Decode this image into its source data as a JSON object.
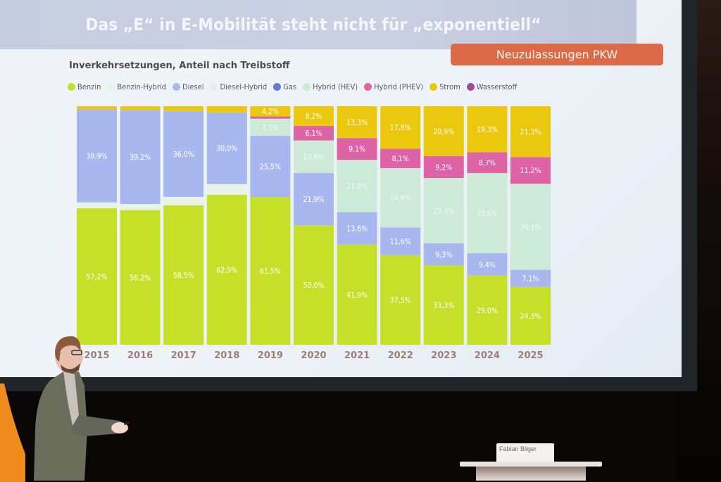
{
  "slide": {
    "title": "Das „E“ in E-Mobilität steht nicht für „exponentiell“",
    "badge": "Neuzulassungen PKW",
    "subtitle": "Inverkehrsetzungen, Anteil nach Treibstoff"
  },
  "legend": [
    {
      "label": "Benzin",
      "color": "#c6e02a"
    },
    {
      "label": "Benzin-Hybrid",
      "color": "#e8f4e8"
    },
    {
      "label": "Diesel",
      "color": "#a8b8ee"
    },
    {
      "label": "Diesel-Hybrid",
      "color": "#e4ecf6"
    },
    {
      "label": "Gas",
      "color": "#6878d8"
    },
    {
      "label": "Hybrid (HEV)",
      "color": "#cde9d8"
    },
    {
      "label": "Hybrid (PHEV)",
      "color": "#de62a6"
    },
    {
      "label": "Strom",
      "color": "#ebc70e"
    },
    {
      "label": "Wasserstoff",
      "color": "#a04a9c"
    }
  ],
  "presenter": {
    "name_card": "Fabian Bilger"
  },
  "chart_data": {
    "type": "bar",
    "stacked": true,
    "title": "Inverkehrsetzungen, Anteil nach Treibstoff",
    "xlabel": "",
    "ylabel": "",
    "ylim": [
      0,
      100
    ],
    "unit": "%",
    "categories": [
      "2015",
      "2016",
      "2017",
      "2018",
      "2019",
      "2020",
      "2021",
      "2022",
      "2023",
      "2024",
      "2025"
    ],
    "series": [
      {
        "name": "Benzin",
        "color": "#c6e02a",
        "values": [
          57.2,
          56.2,
          58.5,
          62.9,
          61.5,
          50.0,
          41.9,
          37.5,
          33.3,
          29.0,
          24.3
        ],
        "labeled": true
      },
      {
        "name": "Benzin-Hybrid",
        "color": "#e8f4e8",
        "values": [
          2.5,
          2.5,
          3.5,
          4.5,
          0,
          0,
          0,
          0,
          0,
          0,
          0
        ],
        "labeled": false
      },
      {
        "name": "Diesel",
        "color": "#a8b8ee",
        "values": [
          38.9,
          39.2,
          36.0,
          30.0,
          25.5,
          21.9,
          13.6,
          11.6,
          9.3,
          9.4,
          7.1
        ],
        "labeled": true
      },
      {
        "name": "Diesel-Hybrid",
        "color": "#e4ecf6",
        "values": [
          0,
          0,
          0,
          0,
          0,
          0,
          0,
          0,
          0,
          0,
          0
        ],
        "labeled": false
      },
      {
        "name": "Gas",
        "color": "#6878d8",
        "values": [
          0,
          0,
          0,
          0,
          0,
          0,
          0,
          0,
          0,
          0,
          0
        ],
        "labeled": false
      },
      {
        "name": "Hybrid (HEV)",
        "color": "#cde9d8",
        "values": [
          0,
          0,
          0,
          0,
          7.1,
          13.6,
          21.9,
          24.8,
          27.3,
          33.6,
          36.1
        ],
        "labeled": true
      },
      {
        "name": "Hybrid (PHEV)",
        "color": "#de62a6",
        "values": [
          0,
          0,
          0,
          0,
          1.0,
          6.1,
          9.1,
          8.1,
          9.2,
          8.7,
          11.2
        ],
        "labeled": true
      },
      {
        "name": "Strom",
        "color": "#ebc70e",
        "values": [
          1.4,
          1.6,
          2.0,
          2.6,
          4.2,
          8.2,
          13.3,
          17.8,
          20.9,
          19.3,
          21.3
        ],
        "labeled": true
      },
      {
        "name": "Wasserstoff",
        "color": "#a04a9c",
        "values": [
          0,
          0,
          0,
          0,
          0,
          0,
          0,
          0,
          0,
          0,
          0
        ],
        "labeled": false
      }
    ],
    "label_threshold": 4.0,
    "legend_position": "top-left",
    "grid": false
  }
}
